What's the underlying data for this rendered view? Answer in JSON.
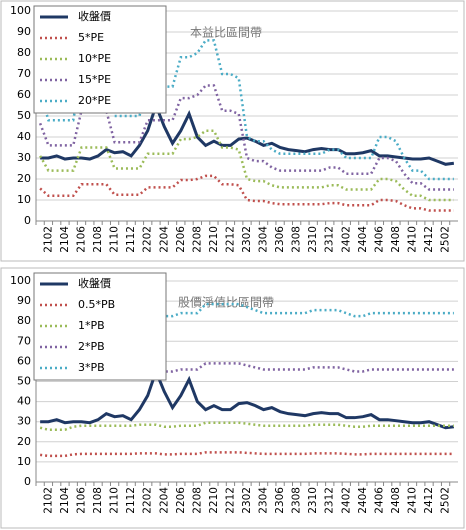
{
  "chart_data": [
    {
      "type": "line",
      "title": "本益比區間帶",
      "legend": "upper left",
      "grid": true,
      "categories": [
        null,
        "2102",
        null,
        "2104",
        null,
        "2106",
        null,
        "2108",
        null,
        "2110",
        null,
        "2112",
        null,
        "2202",
        null,
        "2204",
        null,
        "2206",
        null,
        "2208",
        null,
        "2210",
        null,
        "2212",
        null,
        "2302",
        null,
        "2304",
        null,
        "2306",
        null,
        "2308",
        null,
        "2310",
        null,
        "2312",
        null,
        "2402",
        null,
        "2404",
        null,
        "2406",
        null,
        "2408",
        null,
        "2410",
        null,
        "2412",
        null,
        "2502",
        null
      ],
      "ylim": [
        0,
        100
      ],
      "yticks": [
        0,
        10,
        20,
        30,
        40,
        50,
        60,
        70,
        80,
        90,
        100
      ],
      "series": [
        {
          "name": "收盤價",
          "color": "#1f3864",
          "dash": "solid",
          "values": [
            30,
            30,
            31,
            29.5,
            30,
            30,
            29.5,
            31,
            34,
            32.5,
            33,
            31,
            36,
            43,
            55,
            45,
            37,
            43,
            51,
            40,
            36,
            38,
            36,
            36,
            39,
            39.5,
            38,
            36,
            37,
            35,
            34,
            33.5,
            33,
            34,
            34.5,
            34,
            34,
            32,
            32,
            32.5,
            33.5,
            31,
            31,
            30.5,
            30,
            29.5,
            29.5,
            30,
            28.5,
            27,
            27.5
          ]
        },
        {
          "name": "5*PE",
          "color": "#c0504d",
          "dash": "dotted",
          "values": [
            15.5,
            12,
            12,
            12,
            12,
            17.5,
            17.5,
            17.5,
            17.5,
            12.5,
            12.5,
            12.5,
            12.5,
            16,
            16,
            16,
            16,
            19.5,
            19.5,
            20,
            21.5,
            21.5,
            17.5,
            17.5,
            17,
            10,
            9.5,
            9.5,
            8.5,
            8,
            8,
            8,
            8,
            8,
            8,
            8.5,
            8.5,
            7.5,
            7.5,
            7.5,
            7.5,
            10,
            10,
            9.5,
            7.5,
            6,
            6,
            5,
            5,
            5,
            5
          ]
        },
        {
          "name": "10*PE",
          "color": "#9bbb59",
          "dash": "dotted",
          "values": [
            31,
            24,
            24,
            24,
            24,
            35,
            35,
            35,
            35,
            25,
            25,
            25,
            25,
            32,
            32,
            32,
            32,
            39,
            39,
            40,
            43,
            43,
            35,
            35,
            34,
            20,
            19,
            19,
            17,
            16,
            16,
            16,
            16,
            16,
            16,
            17,
            17,
            15,
            15,
            15,
            15,
            20,
            20,
            19,
            15,
            12,
            12,
            10,
            10,
            10,
            10
          ]
        },
        {
          "name": "15*PE",
          "color": "#8064a2",
          "dash": "dotted",
          "values": [
            46.5,
            36,
            36,
            36,
            36,
            52.5,
            52.5,
            52.5,
            52.5,
            37.5,
            37.5,
            37.5,
            37.5,
            48,
            48,
            48,
            48,
            58.5,
            58.5,
            60,
            64.5,
            64.5,
            52.5,
            52.5,
            51,
            30,
            28.5,
            28.5,
            25.5,
            24,
            24,
            24,
            24,
            24,
            24,
            25.5,
            25.5,
            22.5,
            22.5,
            22.5,
            22.5,
            30,
            30,
            28.5,
            22.5,
            18,
            18,
            15,
            15,
            15,
            15
          ]
        },
        {
          "name": "20*PE",
          "color": "#4bacc6",
          "dash": "dotted",
          "values": [
            62,
            48,
            48,
            48,
            48,
            70,
            70,
            70,
            70,
            50,
            50,
            50,
            50,
            64,
            64,
            64,
            64,
            78,
            78,
            80,
            86,
            86,
            70,
            70,
            68,
            40,
            38,
            38,
            34,
            32,
            32,
            32,
            32,
            32,
            32,
            34,
            34,
            30,
            30,
            30,
            30,
            40,
            40,
            38,
            30,
            24,
            24,
            20,
            20,
            20,
            20
          ]
        }
      ]
    },
    {
      "type": "line",
      "title": "股價淨值比區間帶",
      "legend": "upper left",
      "grid": true,
      "categories": [
        null,
        "2102",
        null,
        "2104",
        null,
        "2106",
        null,
        "2108",
        null,
        "2110",
        null,
        "2112",
        null,
        "2202",
        null,
        "2204",
        null,
        "2206",
        null,
        "2208",
        null,
        "2210",
        null,
        "2212",
        null,
        "2302",
        null,
        "2304",
        null,
        "2306",
        null,
        "2308",
        null,
        "2310",
        null,
        "2312",
        null,
        "2402",
        null,
        "2404",
        null,
        "2406",
        null,
        "2408",
        null,
        "2410",
        null,
        "2412",
        null,
        "2502",
        null
      ],
      "ylim": [
        0,
        100
      ],
      "yticks": [
        0,
        10,
        20,
        30,
        40,
        50,
        60,
        70,
        80,
        90,
        100
      ],
      "series": [
        {
          "name": "收盤價",
          "color": "#1f3864",
          "dash": "solid",
          "values": [
            30,
            30,
            31,
            29.5,
            30,
            30,
            29.5,
            31,
            34,
            32.5,
            33,
            31,
            36,
            43,
            55,
            45,
            37,
            43,
            51,
            40,
            36,
            38,
            36,
            36,
            39,
            39.5,
            38,
            36,
            37,
            35,
            34,
            33.5,
            33,
            34,
            34.5,
            34,
            34,
            32,
            32,
            32.5,
            33.5,
            31,
            31,
            30.5,
            30,
            29.5,
            29.5,
            30,
            28.5,
            27,
            27.5
          ]
        },
        {
          "name": "0.5*PB",
          "color": "#c0504d",
          "dash": "dotted",
          "values": [
            13.5,
            13,
            13,
            13,
            13.75,
            14,
            14,
            14,
            14,
            14,
            14,
            14,
            14.25,
            14.25,
            14.25,
            13.75,
            13.75,
            14,
            14,
            14,
            14.75,
            14.75,
            14.75,
            14.75,
            14.75,
            14.5,
            14.25,
            14,
            14,
            14,
            14,
            14,
            14,
            14.25,
            14.25,
            14.25,
            14.25,
            14,
            13.75,
            13.75,
            14,
            14,
            14,
            14,
            14,
            14,
            14,
            14,
            14,
            14,
            14
          ]
        },
        {
          "name": "1*PB",
          "color": "#9bbb59",
          "dash": "dotted",
          "values": [
            27,
            26,
            26,
            26,
            27.5,
            28,
            28,
            28,
            28,
            28,
            28,
            28,
            28.5,
            28.5,
            28.5,
            27.5,
            27.5,
            28,
            28,
            28,
            29.5,
            29.5,
            29.5,
            29.5,
            29.5,
            29,
            28.5,
            28,
            28,
            28,
            28,
            28,
            28,
            28.5,
            28.5,
            28.5,
            28.5,
            28,
            27.5,
            27.5,
            28,
            28,
            28,
            28,
            28,
            28,
            28,
            28,
            28,
            28,
            28
          ]
        },
        {
          "name": "2*PB",
          "color": "#8064a2",
          "dash": "dotted",
          "values": [
            54,
            52,
            52,
            52,
            55,
            56,
            56,
            56,
            56,
            56,
            56,
            56,
            57,
            57,
            57,
            55,
            55,
            56,
            56,
            56,
            59,
            59,
            59,
            59,
            59,
            58,
            57,
            56,
            56,
            56,
            56,
            56,
            56,
            57,
            57,
            57,
            57,
            56,
            55,
            55,
            56,
            56,
            56,
            56,
            56,
            56,
            56,
            56,
            56,
            56,
            56
          ]
        },
        {
          "name": "3*PB",
          "color": "#4bacc6",
          "dash": "dotted",
          "values": [
            81,
            78,
            78,
            78,
            82.5,
            84,
            84,
            84,
            84,
            84,
            84,
            84,
            85.5,
            85.5,
            85.5,
            82.5,
            82.5,
            84,
            84,
            84,
            88.5,
            88.5,
            88.5,
            88.5,
            88.5,
            87,
            85.5,
            84,
            84,
            84,
            84,
            84,
            84,
            85.5,
            85.5,
            85.5,
            85.5,
            84,
            82.5,
            82.5,
            84,
            84,
            84,
            84,
            84,
            84,
            84,
            84,
            84,
            84,
            84
          ]
        }
      ]
    }
  ]
}
